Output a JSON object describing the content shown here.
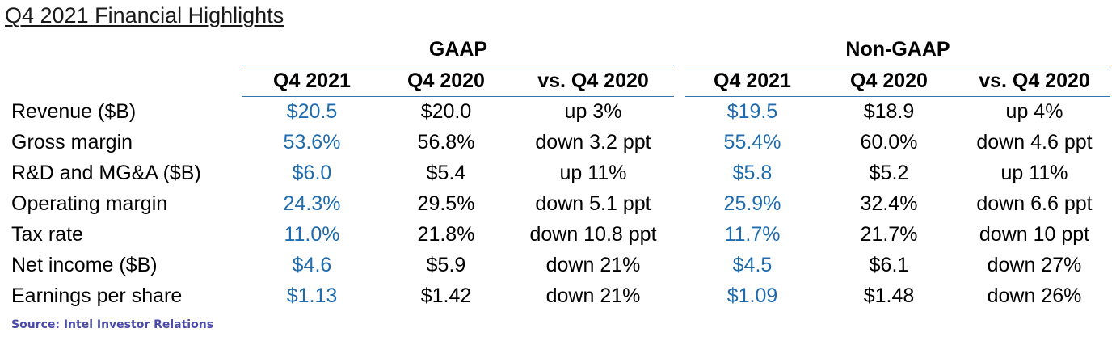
{
  "title": "Q4 2021 Financial Highlights",
  "groups": [
    {
      "name": "GAAP",
      "columns": [
        "Q4 2021",
        "Q4 2020",
        "vs. Q4 2020"
      ]
    },
    {
      "name": "Non-GAAP",
      "columns": [
        "Q4 2021",
        "Q4 2020",
        "vs. Q4 2020"
      ]
    }
  ],
  "rows": [
    {
      "label": "Revenue ($B)",
      "gaap": [
        "$20.5",
        "$20.0",
        "up 3%"
      ],
      "nongaap": [
        "$19.5",
        "$18.9",
        "up 4%"
      ]
    },
    {
      "label": "Gross margin",
      "gaap": [
        "53.6%",
        "56.8%",
        "down 3.2 ppt"
      ],
      "nongaap": [
        "55.4%",
        "60.0%",
        "down 4.6 ppt"
      ]
    },
    {
      "label": "R&D and MG&A ($B)",
      "gaap": [
        "$6.0",
        "$5.4",
        "up 11%"
      ],
      "nongaap": [
        "$5.8",
        "$5.2",
        "up 11%"
      ]
    },
    {
      "label": "Operating margin",
      "gaap": [
        "24.3%",
        "29.5%",
        "down 5.1 ppt"
      ],
      "nongaap": [
        "25.9%",
        "32.4%",
        "down 6.6 ppt"
      ]
    },
    {
      "label": "Tax rate",
      "gaap": [
        "11.0%",
        "21.8%",
        "down 10.8 ppt"
      ],
      "nongaap": [
        "11.7%",
        "21.7%",
        "down 10 ppt"
      ]
    },
    {
      "label": "Net income ($B)",
      "gaap": [
        "$4.6",
        "$5.9",
        "down 21%"
      ],
      "nongaap": [
        "$4.5",
        "$6.1",
        "down 27%"
      ]
    },
    {
      "label": "Earnings per share",
      "gaap": [
        "$1.13",
        "$1.42",
        "down 21%"
      ],
      "nongaap": [
        "$1.09",
        "$1.48",
        "down 26%"
      ]
    }
  ],
  "source": "Source: Intel Investor Relations",
  "colors": {
    "current_period": "#1f6bad",
    "rule": "#2e75b6",
    "source": "#4a4aa8"
  }
}
